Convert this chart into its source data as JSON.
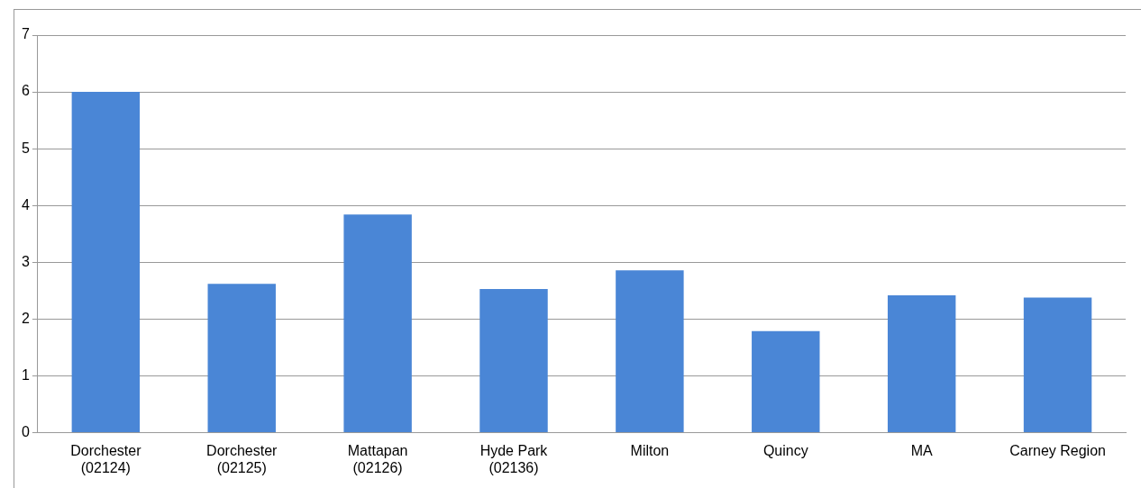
{
  "chart_data": {
    "type": "bar",
    "categories": [
      "Dorchester\n(02124)",
      "Dorchester\n(02125)",
      "Mattapan\n(02126)",
      "Hyde Park\n(02136)",
      "Milton",
      "Quincy",
      "MA",
      "Carney Region"
    ],
    "values": [
      6.0,
      2.62,
      3.84,
      2.53,
      2.86,
      1.79,
      2.42,
      2.38
    ],
    "color": "#4a86d6",
    "ylim": [
      0,
      7
    ],
    "yticks": [
      0,
      1,
      2,
      3,
      4,
      5,
      6,
      7
    ],
    "grid": "y",
    "legend": false
  }
}
